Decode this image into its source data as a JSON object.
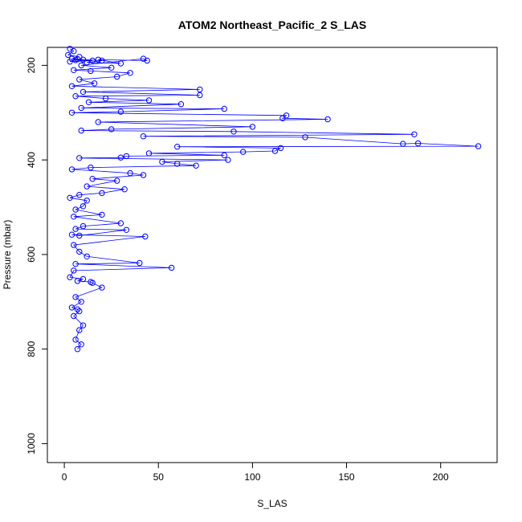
{
  "chart_data": {
    "type": "line",
    "title": "ATOM2 Northeast_Pacific_2 S_LAS",
    "xlabel": "S_LAS",
    "ylabel": "Pressure (mbar)",
    "xlim": [
      -9,
      230
    ],
    "ylim": [
      1040,
      162
    ],
    "y_reversed": true,
    "grid": false,
    "xticks": [
      0,
      50,
      100,
      150,
      200
    ],
    "yticks": [
      200,
      400,
      600,
      800,
      1000
    ],
    "series_color": "#0000ff",
    "series": [
      {
        "marker": "open-circle",
        "x": [
          3,
          5,
          2,
          8,
          4,
          10,
          6,
          15,
          3,
          7,
          20,
          12,
          30,
          18,
          44,
          42,
          9,
          25,
          5,
          14,
          35,
          28,
          8,
          16,
          4,
          72,
          10,
          72,
          6,
          22,
          45,
          13,
          62,
          9,
          85,
          30,
          4,
          118,
          116,
          140,
          18,
          100,
          25,
          9,
          90,
          186,
          42,
          128,
          180,
          188,
          220,
          60,
          115,
          112,
          95,
          45,
          85,
          33,
          30,
          8,
          87,
          52,
          60,
          70,
          14,
          4,
          35,
          42,
          15,
          28,
          12,
          32,
          20,
          8,
          3,
          12,
          10,
          6,
          20,
          5,
          30,
          10,
          6,
          33,
          8,
          4,
          43,
          5,
          8,
          12,
          40,
          6,
          57,
          5,
          3,
          10,
          7,
          14,
          15,
          20,
          6,
          9,
          4,
          7,
          8,
          5,
          10,
          8,
          6,
          9,
          7
        ],
        "y": [
          165,
          170,
          178,
          182,
          186,
          188,
          189,
          190,
          192,
          187,
          190,
          194,
          196,
          188,
          190,
          186,
          200,
          205,
          210,
          212,
          216,
          224,
          230,
          238,
          244,
          251,
          256,
          263,
          265,
          270,
          274,
          278,
          282,
          290,
          292,
          298,
          300,
          306,
          312,
          314,
          320,
          330,
          335,
          338,
          340,
          346,
          350,
          352,
          366,
          365,
          371,
          372,
          375,
          381,
          383,
          386,
          390,
          392,
          395,
          396,
          400,
          404,
          408,
          412,
          416,
          420,
          428,
          432,
          440,
          444,
          456,
          462,
          470,
          474,
          480,
          486,
          498,
          505,
          516,
          520,
          534,
          540,
          546,
          548,
          560,
          558,
          562,
          580,
          594,
          604,
          618,
          620,
          628,
          634,
          648,
          652,
          656,
          658,
          660,
          670,
          690,
          700,
          712,
          716,
          720,
          730,
          750,
          760,
          780,
          790,
          800
        ]
      }
    ]
  }
}
